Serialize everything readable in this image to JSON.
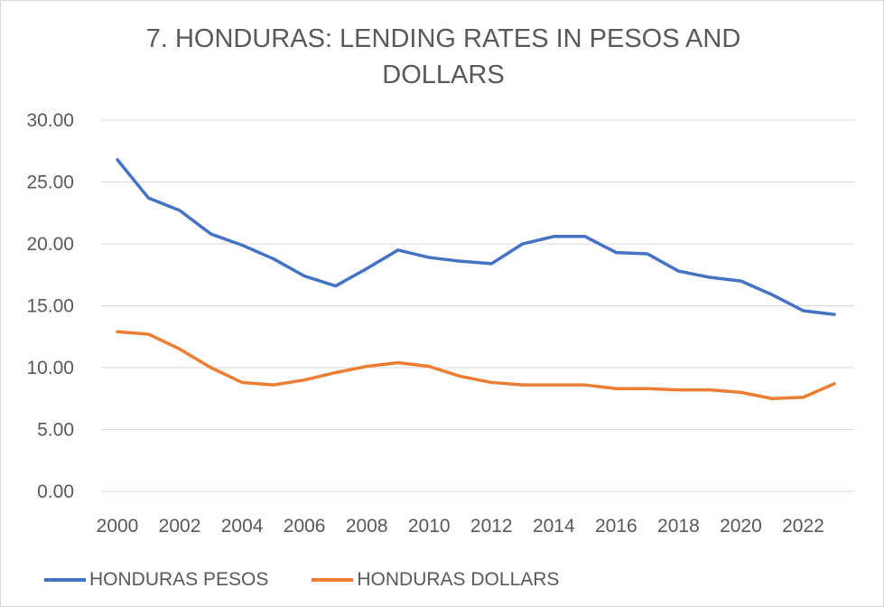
{
  "chart_data": {
    "type": "line",
    "title": "7. HONDURAS: LENDING RATES IN PESOS AND DOLLARS",
    "x": [
      2000,
      2001,
      2002,
      2003,
      2004,
      2005,
      2006,
      2007,
      2008,
      2009,
      2010,
      2011,
      2012,
      2013,
      2014,
      2015,
      2016,
      2017,
      2018,
      2019,
      2020,
      2021,
      2022,
      2023
    ],
    "x_tick_labels": [
      "2000",
      "2002",
      "2004",
      "2006",
      "2008",
      "2010",
      "2012",
      "2014",
      "2016",
      "2018",
      "2020",
      "2022"
    ],
    "y_tick_labels": [
      "0.00",
      "5.00",
      "10.00",
      "15.00",
      "20.00",
      "25.00",
      "30.00"
    ],
    "ylim": [
      0,
      30
    ],
    "grid": true,
    "legend_position": "bottom-left",
    "series": [
      {
        "name": "HONDURAS PESOS",
        "color": "#4472c4",
        "values": [
          26.8,
          23.7,
          22.7,
          20.8,
          19.9,
          18.8,
          17.4,
          16.6,
          18.0,
          19.5,
          18.9,
          18.6,
          18.4,
          20.0,
          20.6,
          20.6,
          19.3,
          19.2,
          17.8,
          17.3,
          17.0,
          15.9,
          14.6,
          14.3
        ]
      },
      {
        "name": "HONDURAS DOLLARS",
        "color": "#ed7d31",
        "values": [
          12.9,
          12.7,
          11.5,
          10.0,
          8.8,
          8.6,
          9.0,
          9.6,
          10.1,
          10.4,
          10.1,
          9.3,
          8.8,
          8.6,
          8.6,
          8.6,
          8.3,
          8.3,
          8.2,
          8.2,
          8.0,
          7.5,
          7.6,
          8.7
        ]
      }
    ]
  }
}
